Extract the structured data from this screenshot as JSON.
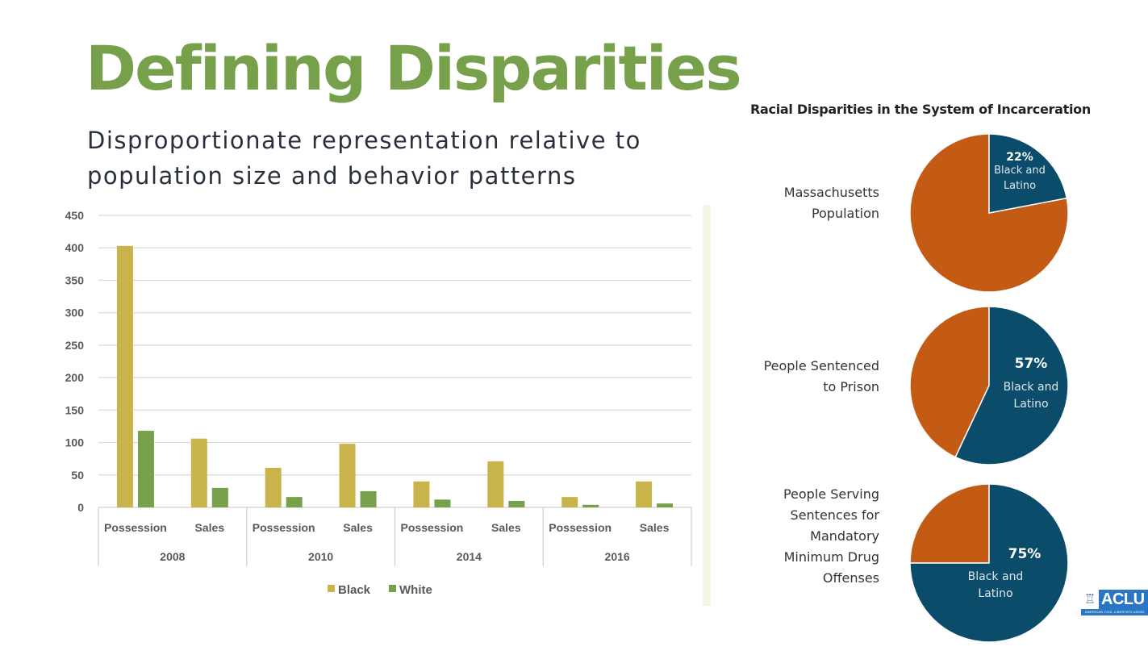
{
  "slide": {
    "title": "Defining Disparities",
    "subtitle": "Disproportionate representation relative to population size and behavior patterns"
  },
  "colors": {
    "title_green": "#76a04a",
    "black_series": "#c9b44b",
    "white_series": "#76a04a",
    "pie_blue": "#0b4c6a",
    "pie_orange": "#c45b14"
  },
  "logo": {
    "icon": "statue-of-liberty-icon",
    "name": "ACLU",
    "tagline": "AMERICAN CIVIL LIBERTIES UNION"
  },
  "chart_data": [
    {
      "type": "bar",
      "title": "",
      "xlabel": "",
      "ylabel": "",
      "ylim": [
        0,
        450
      ],
      "yticks": [
        0,
        50,
        100,
        150,
        200,
        250,
        300,
        350,
        400,
        450
      ],
      "grid": true,
      "legend_position": "bottom",
      "groups": [
        {
          "year": "2008",
          "categories": [
            "Possession",
            "Sales"
          ]
        },
        {
          "year": "2010",
          "categories": [
            "Possession",
            "Sales"
          ]
        },
        {
          "year": "2014",
          "categories": [
            "Possession",
            "Sales"
          ]
        },
        {
          "year": "2016",
          "categories": [
            "Possession",
            "Sales"
          ]
        }
      ],
      "categories": [
        "2008 Possession",
        "2008 Sales",
        "2010 Possession",
        "2010 Sales",
        "2014 Possession",
        "2014 Sales",
        "2016 Possession",
        "2016 Sales"
      ],
      "series": [
        {
          "name": "Black",
          "color": "#c9b44b",
          "values": [
            403,
            106,
            61,
            98,
            40,
            71,
            16,
            40
          ]
        },
        {
          "name": "White",
          "color": "#76a04a",
          "values": [
            118,
            30,
            16,
            25,
            12,
            10,
            4,
            6
          ]
        }
      ]
    },
    {
      "type": "pie",
      "title": "Racial Disparities in the System of Incarceration",
      "pies": [
        {
          "label": "Massachusetts Population",
          "label_lines": [
            "Massachusetts",
            "Population"
          ],
          "highlight_percent": 22,
          "highlight_text": "22%",
          "highlight_label_lines": [
            "Black and",
            "Latino"
          ]
        },
        {
          "label": "People Sentenced to Prison",
          "label_lines": [
            "People Sentenced",
            "to Prison"
          ],
          "highlight_percent": 57,
          "highlight_text": "57%",
          "highlight_label_lines": [
            "Black and",
            "Latino"
          ]
        },
        {
          "label": "People Serving Sentences for Mandatory Minimum Drug Offenses",
          "label_lines": [
            "People Serving",
            "Sentences for",
            "Mandatory",
            "Minimum Drug",
            "Offenses"
          ],
          "highlight_percent": 75,
          "highlight_text": "75%",
          "highlight_label_lines": [
            "Black and",
            "Latino"
          ]
        }
      ]
    }
  ]
}
